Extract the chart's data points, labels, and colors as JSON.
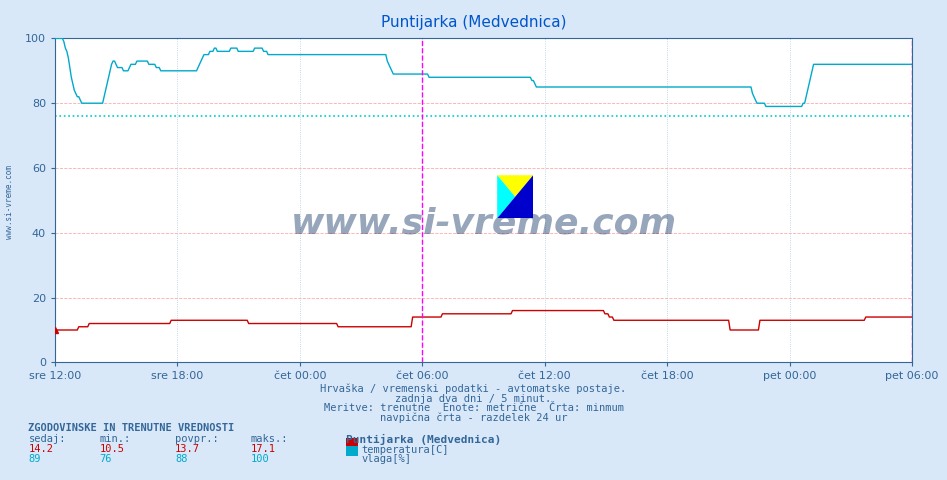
{
  "title": "Puntijarka (Medvednica)",
  "title_color": "#0055cc",
  "bg_color": "#d8e8f8",
  "plot_bg_color": "#ffffff",
  "grid_color_h": "#ffaaaa",
  "grid_color_v": "#aaccdd",
  "ylim": [
    0,
    100
  ],
  "yticks": [
    0,
    20,
    40,
    60,
    80,
    100
  ],
  "x_labels": [
    "sre 12:00",
    "sre 18:00",
    "čet 00:00",
    "čet 06:00",
    "čet 12:00",
    "čet 18:00",
    "pet 00:00",
    "pet 06:00"
  ],
  "n_points": 576,
  "temp_color": "#cc0000",
  "humidity_color": "#00aacc",
  "min_line_color": "#00cccc",
  "min_temp": 10.5,
  "avg_temp": 13.7,
  "max_temp": 17.1,
  "cur_temp": 14.2,
  "min_hum": 76,
  "avg_hum": 88,
  "max_hum": 100,
  "cur_hum": 89,
  "vline_color": "#ff00ff",
  "ylabel_color": "#336699",
  "tick_color": "#336699",
  "footer_text1": "Hrvaška / vremenski podatki - avtomatske postaje.",
  "footer_text2": "zadnja dva dni / 5 minut.",
  "footer_text3": "Meritve: trenutne  Enote: metrične  Črta: minmum",
  "footer_text4": "navpična črta - razdelek 24 ur",
  "watermark": "www.si-vreme.com",
  "station_label": "Puntijarka (Medvednica)",
  "legend_temp": "temperatura[C]",
  "legend_hum": "vlaga[%]",
  "stats_header": "ZGODOVINSKE IN TRENUTNE VREDNOSTI",
  "stats_cols": [
    "sedaj:",
    "min.:",
    "povpr.:",
    "maks.:"
  ],
  "watermark_color": "#1a3a6a",
  "sidebar_text": "www.si-vreme.com",
  "sidebar_color": "#336699",
  "hum_data": [
    100,
    100,
    100,
    100,
    100,
    100,
    99,
    97,
    96,
    94,
    91,
    88,
    86,
    84,
    83,
    82,
    82,
    81,
    80,
    80,
    80,
    80,
    80,
    80,
    80,
    80,
    80,
    80,
    80,
    80,
    80,
    80,
    80,
    82,
    84,
    86,
    88,
    90,
    92,
    93,
    93,
    92,
    91,
    91,
    91,
    91,
    90,
    90,
    90,
    90,
    91,
    92,
    92,
    92,
    92,
    93,
    93,
    93,
    93,
    93,
    93,
    93,
    93,
    92,
    92,
    92,
    92,
    92,
    91,
    91,
    91,
    90,
    90,
    90,
    90,
    90,
    90,
    90,
    90,
    90,
    90,
    90,
    90,
    90,
    90,
    90,
    90,
    90,
    90,
    90,
    90,
    90,
    90,
    90,
    90,
    90,
    91,
    92,
    93,
    94,
    95,
    95,
    95,
    95,
    96,
    96,
    96,
    97,
    97,
    96,
    96,
    96,
    96,
    96,
    96,
    96,
    96,
    96,
    97,
    97,
    97,
    97,
    97,
    96,
    96,
    96,
    96,
    96,
    96,
    96,
    96,
    96,
    96,
    96,
    97,
    97,
    97,
    97,
    97,
    97,
    96,
    96,
    96,
    95,
    95,
    95,
    95,
    95,
    95,
    95,
    95,
    95,
    95,
    95,
    95,
    95,
    95,
    95,
    95,
    95,
    95,
    95,
    95,
    95,
    95,
    95,
    95,
    95,
    95,
    95,
    95,
    95,
    95,
    95,
    95,
    95,
    95,
    95,
    95,
    95,
    95,
    95,
    95,
    95,
    95,
    95,
    95,
    95,
    95,
    95,
    95,
    95,
    95,
    95,
    95,
    95,
    95,
    95,
    95,
    95,
    95,
    95,
    95,
    95,
    95,
    95,
    95,
    95,
    95,
    95,
    95,
    95,
    95,
    95,
    95,
    95,
    95,
    95,
    95,
    95,
    95,
    95,
    95,
    93,
    92,
    91,
    90,
    89,
    89,
    89,
    89,
    89,
    89,
    89,
    89,
    89,
    89,
    89,
    89,
    89,
    89,
    89,
    89,
    89,
    89,
    89,
    89,
    89,
    89,
    89,
    89,
    88,
    88,
    88,
    88,
    88,
    88,
    88,
    88,
    88,
    88,
    88,
    88,
    88,
    88,
    88,
    88,
    88,
    88,
    88,
    88,
    88,
    88,
    88,
    88,
    88,
    88,
    88,
    88,
    88,
    88,
    88,
    88,
    88,
    88,
    88,
    88,
    88,
    88,
    88,
    88,
    88,
    88,
    88,
    88,
    88,
    88,
    88,
    88,
    88,
    88,
    88,
    88,
    88,
    88,
    88,
    88,
    88,
    88,
    88,
    88,
    88,
    88,
    88,
    88,
    88,
    88,
    88,
    88,
    88,
    87,
    87,
    86,
    85,
    85,
    85,
    85,
    85,
    85,
    85,
    85,
    85,
    85,
    85,
    85,
    85,
    85,
    85,
    85,
    85,
    85,
    85,
    85,
    85,
    85,
    85,
    85,
    85,
    85,
    85,
    85,
    85,
    85,
    85,
    85,
    85,
    85,
    85,
    85,
    85,
    85,
    85,
    85,
    85,
    85,
    85,
    85,
    85,
    85,
    85,
    85,
    85,
    85,
    85,
    85,
    85,
    85,
    85,
    85,
    85,
    85,
    85,
    85,
    85,
    85,
    85,
    85,
    85,
    85,
    85,
    85,
    85,
    85,
    85,
    85,
    85,
    85,
    85,
    85,
    85,
    85,
    85,
    85,
    85,
    85,
    85,
    85,
    85,
    85,
    85,
    85,
    85,
    85,
    85,
    85,
    85,
    85,
    85,
    85,
    85,
    85,
    85,
    85,
    85,
    85,
    85,
    85,
    85,
    85,
    85,
    85,
    85,
    85,
    85,
    85,
    85,
    85,
    85,
    85,
    85,
    85,
    85,
    85,
    85,
    85,
    85,
    85,
    85,
    85,
    85,
    85,
    85,
    85,
    85,
    85,
    85,
    85,
    85,
    85,
    85,
    85,
    85,
    85,
    85,
    85,
    85,
    85,
    85,
    83,
    82,
    81,
    80,
    80,
    80,
    80,
    80,
    80,
    79,
    79,
    79,
    79,
    79,
    79,
    79,
    79,
    79,
    79,
    79,
    79,
    79,
    79,
    79,
    79,
    79,
    79,
    79,
    79,
    79,
    79,
    79,
    79,
    79,
    80,
    80,
    82,
    84,
    86,
    88,
    90,
    92,
    92,
    92,
    92,
    92,
    92,
    92,
    92,
    92,
    92,
    92,
    92,
    92,
    92,
    92,
    92,
    92,
    92,
    92,
    92,
    92,
    92,
    92,
    92,
    92,
    92,
    92,
    92,
    92,
    92,
    92,
    92,
    92,
    92,
    92,
    92,
    92,
    92,
    92,
    92,
    92,
    92,
    92,
    92,
    92,
    92,
    92,
    92,
    92,
    92,
    92,
    92,
    92,
    92,
    92,
    92,
    92,
    92,
    92,
    92,
    92,
    92,
    92,
    92,
    92,
    92,
    92,
    92,
    92,
    92,
    92,
    92,
    92,
    92,
    92,
    92,
    92,
    92,
    92,
    92,
    92,
    92,
    92,
    92,
    92,
    92,
    92,
    92,
    92,
    92,
    92,
    92,
    92,
    92,
    92,
    92,
    92,
    92,
    92,
    92,
    92,
    92
  ],
  "temp_data": [
    10,
    10,
    10,
    10,
    10,
    10,
    10,
    10,
    10,
    10,
    10,
    10,
    10,
    10,
    10,
    10,
    11,
    11,
    11,
    11,
    11,
    11,
    11,
    12,
    12,
    12,
    12,
    12,
    12,
    12,
    12,
    12,
    12,
    12,
    12,
    12,
    12,
    12,
    12,
    12,
    12,
    12,
    12,
    12,
    12,
    12,
    12,
    12,
    12,
    12,
    12,
    12,
    12,
    12,
    12,
    12,
    12,
    12,
    12,
    12,
    12,
    12,
    12,
    12,
    12,
    12,
    12,
    12,
    12,
    12,
    12,
    12,
    12,
    12,
    12,
    12,
    12,
    12,
    13,
    13,
    13,
    13,
    13,
    13,
    13,
    13,
    13,
    13,
    13,
    13,
    13,
    13,
    13,
    13,
    13,
    13,
    13,
    13,
    13,
    13,
    13,
    13,
    13,
    13,
    13,
    13,
    13,
    13,
    13,
    13,
    13,
    13,
    13,
    13,
    13,
    13,
    13,
    13,
    13,
    13,
    13,
    13,
    13,
    13,
    13,
    13,
    13,
    13,
    13,
    13,
    12,
    12,
    12,
    12,
    12,
    12,
    12,
    12,
    12,
    12,
    12,
    12,
    12,
    12,
    12,
    12,
    12,
    12,
    12,
    12,
    12,
    12,
    12,
    12,
    12,
    12,
    12,
    12,
    12,
    12,
    12,
    12,
    12,
    12,
    12,
    12,
    12,
    12,
    12,
    12,
    12,
    12,
    12,
    12,
    12,
    12,
    12,
    12,
    12,
    12,
    12,
    12,
    12,
    12,
    12,
    12,
    12,
    12,
    12,
    12,
    11,
    11,
    11,
    11,
    11,
    11,
    11,
    11,
    11,
    11,
    11,
    11,
    11,
    11,
    11,
    11,
    11,
    11,
    11,
    11,
    11,
    11,
    11,
    11,
    11,
    11,
    11,
    11,
    11,
    11,
    11,
    11,
    11,
    11,
    11,
    11,
    11,
    11,
    11,
    11,
    11,
    11,
    11,
    11,
    11,
    11,
    11,
    11,
    11,
    11,
    14,
    14,
    14,
    14,
    14,
    14,
    14,
    14,
    14,
    14,
    14,
    14,
    14,
    14,
    14,
    14,
    14,
    14,
    14,
    14,
    15,
    15,
    15,
    15,
    15,
    15,
    15,
    15,
    15,
    15,
    15,
    15,
    15,
    15,
    15,
    15,
    15,
    15,
    15,
    15,
    15,
    15,
    15,
    15,
    15,
    15,
    15,
    15,
    15,
    15,
    15,
    15,
    15,
    15,
    15,
    15,
    15,
    15,
    15,
    15,
    15,
    15,
    15,
    15,
    15,
    15,
    15,
    16,
    16,
    16,
    16,
    16,
    16,
    16,
    16,
    16,
    16,
    16,
    16,
    16,
    16,
    16,
    16,
    16,
    16,
    16,
    16,
    16,
    16,
    16,
    16,
    16,
    16,
    16,
    16,
    16,
    16,
    16,
    16,
    16,
    16,
    16,
    16,
    16,
    16,
    16,
    16,
    16,
    16,
    16,
    16,
    16,
    16,
    16,
    16,
    16,
    16,
    16,
    16,
    16,
    16,
    16,
    16,
    16,
    16,
    16,
    16,
    16,
    16,
    15,
    15,
    15,
    14,
    14,
    14,
    13,
    13,
    13,
    13,
    13,
    13,
    13,
    13,
    13,
    13,
    13,
    13,
    13,
    13,
    13,
    13,
    13,
    13,
    13,
    13,
    13,
    13,
    13,
    13,
    13,
    13,
    13,
    13,
    13,
    13,
    13,
    13,
    13,
    13,
    13,
    13,
    13,
    13,
    13,
    13,
    13,
    13,
    13,
    13,
    13,
    13,
    13,
    13,
    13,
    13,
    13,
    13,
    13,
    13,
    13,
    13,
    13,
    13,
    13,
    13,
    13,
    13,
    13,
    13,
    13,
    13,
    13,
    13,
    13,
    13,
    13,
    13,
    13,
    13,
    13,
    13,
    13,
    13,
    10,
    10,
    10,
    10,
    10,
    10,
    10,
    10,
    10,
    10,
    10,
    10,
    10,
    10,
    10,
    10,
    10,
    10,
    10,
    10,
    13,
    13,
    13,
    13,
    13,
    13,
    13,
    13,
    13,
    13,
    13,
    13,
    13,
    13,
    13,
    13,
    13,
    13,
    13,
    13,
    13,
    13,
    13,
    13,
    13,
    13,
    13,
    13,
    13,
    13,
    13,
    13,
    13,
    13,
    13,
    13,
    13,
    13,
    13,
    13,
    13,
    13,
    13,
    13,
    13,
    13,
    13,
    13,
    13,
    13,
    13,
    13,
    13,
    13,
    13,
    13,
    13,
    13,
    13,
    13,
    13,
    13,
    13,
    13,
    13,
    13,
    13,
    13,
    13,
    13,
    13,
    14,
    14,
    14,
    14,
    14,
    14,
    14,
    14,
    14,
    14,
    14,
    14,
    14,
    14,
    14,
    14,
    14,
    14,
    14,
    14,
    14,
    14,
    14,
    14,
    14,
    14,
    14,
    14,
    14,
    14,
    14,
    14,
    14,
    14,
    14
  ]
}
